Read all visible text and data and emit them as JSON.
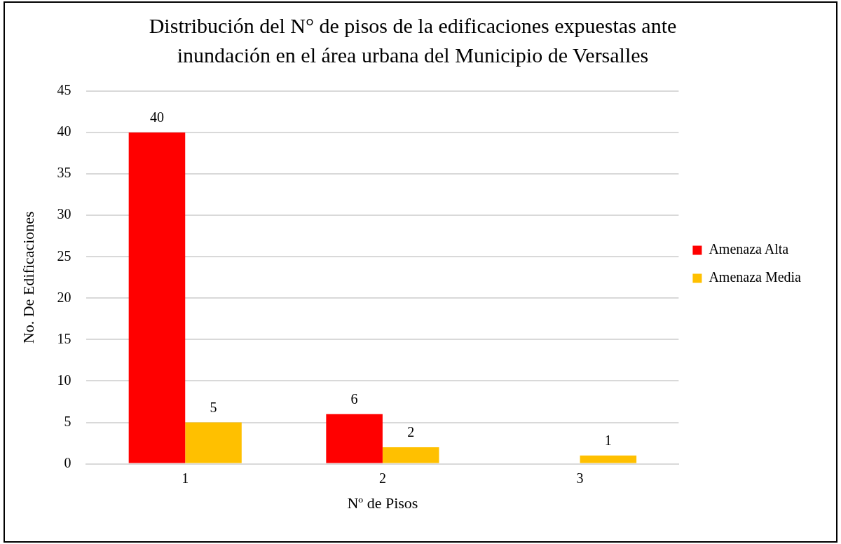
{
  "chart_data": {
    "type": "bar",
    "title": "Distribución del N° de pisos de la edificaciones expuestas ante inundación en el área urbana del Municipio de Versalles",
    "xlabel": "Nº de Pisos",
    "ylabel": "No. De Edificaciones",
    "categories": [
      "1",
      "2",
      "3"
    ],
    "series": [
      {
        "name": "Amenaza Alta",
        "color": "#ff0000",
        "values": [
          40,
          6,
          null
        ]
      },
      {
        "name": "Amenaza Media",
        "color": "#ffc000",
        "values": [
          5,
          2,
          1
        ]
      }
    ],
    "ylim": [
      0,
      45
    ],
    "yticks": [
      0,
      5,
      10,
      15,
      20,
      25,
      30,
      35,
      40,
      45
    ],
    "grid": "y",
    "legend": "right",
    "data_labels": true
  }
}
